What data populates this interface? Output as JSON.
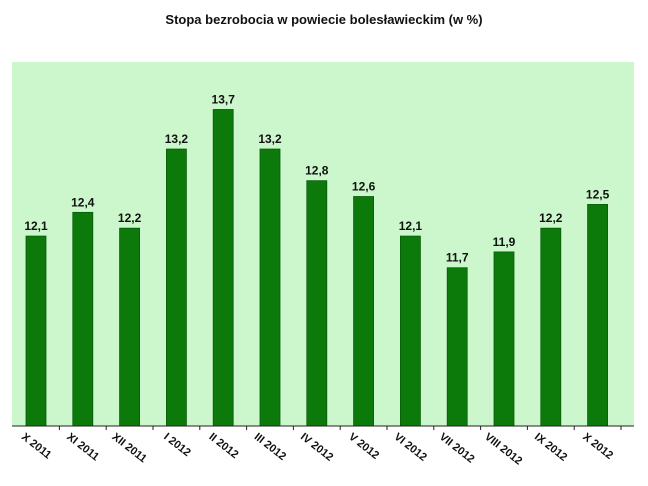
{
  "chart_data": {
    "type": "bar",
    "title": "Stopa bezrobocia w powiecie bolesławieckim (w %)",
    "categories": [
      "X 2011",
      "XI 2011",
      "XII 2011",
      "I 2012",
      "II 2012",
      "III 2012",
      "IV 2012",
      "V 2012",
      "VI 2012",
      "VII 2012",
      "VIII 2012",
      "IX 2012",
      "X 2012"
    ],
    "values": [
      12.1,
      12.4,
      12.2,
      13.2,
      13.7,
      13.2,
      12.8,
      12.6,
      12.1,
      11.7,
      11.9,
      12.2,
      12.5
    ],
    "value_labels": [
      "12,1",
      "12,4",
      "12,2",
      "13,2",
      "13,7",
      "13,2",
      "12,8",
      "12,6",
      "12,1",
      "11,7",
      "11,9",
      "12,2",
      "12,5"
    ],
    "ylim": [
      9.7,
      14.3
    ],
    "grid": false,
    "legend": "none",
    "colors": {
      "plot_background": "#ccf7cc",
      "bar": "#0b7a0b",
      "bar_edge": "#075a07",
      "axis": "#222222"
    }
  }
}
